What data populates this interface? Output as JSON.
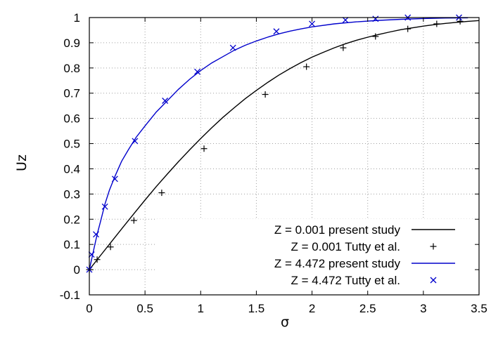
{
  "chart_data": {
    "type": "line",
    "title": "",
    "xlabel": "σ",
    "ylabel": "Uz",
    "xlim": [
      0,
      3.5
    ],
    "ylim": [
      -0.1,
      1
    ],
    "grid": true,
    "legend_position": "bottom-right",
    "x_ticks": [
      0,
      0.5,
      1,
      1.5,
      2,
      2.5,
      3,
      3.5
    ],
    "x_tick_labels": [
      "0",
      "0.5",
      "1",
      "1.5",
      "2",
      "2.5",
      "3",
      "3.5"
    ],
    "y_ticks": [
      -0.1,
      0,
      0.1,
      0.2,
      0.3,
      0.4,
      0.5,
      0.6,
      0.7,
      0.8,
      0.9,
      1
    ],
    "y_tick_labels": [
      "-0.1",
      "0",
      "0.1",
      "0.2",
      "0.3",
      "0.4",
      "0.5",
      "0.6",
      "0.7",
      "0.8",
      "0.9",
      "1"
    ],
    "series": [
      {
        "name": "Z = 0.001 present study",
        "style": "line",
        "color": "#000000",
        "x": [
          0,
          0.1,
          0.2,
          0.3,
          0.4,
          0.5,
          0.6,
          0.7,
          0.8,
          0.9,
          1.0,
          1.1,
          1.2,
          1.3,
          1.4,
          1.5,
          1.6,
          1.7,
          1.8,
          1.9,
          2.0,
          2.1,
          2.2,
          2.3,
          2.4,
          2.5,
          2.6,
          2.7,
          2.8,
          2.9,
          3.0,
          3.1,
          3.2,
          3.3,
          3.4,
          3.5
        ],
        "y": [
          0,
          0.056,
          0.112,
          0.167,
          0.222,
          0.276,
          0.329,
          0.379,
          0.428,
          0.475,
          0.52,
          0.563,
          0.604,
          0.642,
          0.678,
          0.711,
          0.742,
          0.771,
          0.797,
          0.821,
          0.843,
          0.862,
          0.88,
          0.896,
          0.91,
          0.922,
          0.933,
          0.943,
          0.952,
          0.959,
          0.966,
          0.972,
          0.977,
          0.981,
          0.985,
          0.988
        ]
      },
      {
        "name": "Z = 0.001 Tutty et al.",
        "style": "marker-plus",
        "color": "#000000",
        "x": [
          0,
          0.07,
          0.19,
          0.4,
          0.65,
          1.03,
          1.58,
          1.95,
          2.28,
          2.57,
          2.86,
          3.12,
          3.33
        ],
        "y": [
          0,
          0.04,
          0.09,
          0.195,
          0.305,
          0.48,
          0.695,
          0.805,
          0.88,
          0.925,
          0.955,
          0.975,
          0.985
        ]
      },
      {
        "name": "Z = 4.472 present study",
        "style": "line",
        "color": "#0000cc",
        "x": [
          0,
          0.01,
          0.02,
          0.04,
          0.07,
          0.1,
          0.14,
          0.18,
          0.23,
          0.29,
          0.35,
          0.42,
          0.5,
          0.6,
          0.7,
          0.8,
          0.9,
          1.0,
          1.1,
          1.2,
          1.3,
          1.4,
          1.5,
          1.6,
          1.7,
          1.8,
          1.9,
          2.0,
          2.2,
          2.4,
          2.6,
          2.8,
          3.0,
          3.2,
          3.4
        ],
        "y": [
          0,
          0.02,
          0.04,
          0.08,
          0.14,
          0.19,
          0.26,
          0.315,
          0.37,
          0.43,
          0.475,
          0.525,
          0.57,
          0.625,
          0.67,
          0.715,
          0.755,
          0.79,
          0.82,
          0.845,
          0.87,
          0.89,
          0.907,
          0.922,
          0.935,
          0.946,
          0.955,
          0.963,
          0.975,
          0.983,
          0.989,
          0.993,
          0.996,
          0.998,
          0.999
        ]
      },
      {
        "name": "Z = 4.472 Tutty et al.",
        "style": "marker-x",
        "color": "#0000cc",
        "x": [
          0,
          0.02,
          0.06,
          0.14,
          0.23,
          0.41,
          0.68,
          0.97,
          1.29,
          1.68,
          2.0,
          2.3,
          2.57,
          2.86,
          3.32
        ],
        "y": [
          0,
          0.06,
          0.14,
          0.25,
          0.36,
          0.51,
          0.67,
          0.785,
          0.88,
          0.945,
          0.975,
          0.99,
          0.995,
          1.0,
          1.0
        ]
      }
    ]
  }
}
